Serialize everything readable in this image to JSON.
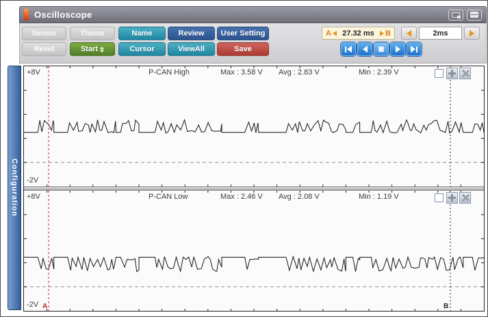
{
  "window": {
    "title": "Oscilloscope",
    "titlebar_icons": [
      "app-icon",
      "screen-capture-icon",
      "window-menu-icon"
    ]
  },
  "toolbar": {
    "buttons_row1": [
      {
        "label": "Sensor",
        "style": "gray"
      },
      {
        "label": "Theme",
        "style": "gray"
      },
      {
        "label": "Name",
        "style": "teal"
      },
      {
        "label": "Review",
        "style": "blue"
      },
      {
        "label": "User Setting",
        "style": "blue"
      }
    ],
    "buttons_row2": [
      {
        "label": "Reset",
        "style": "gray"
      },
      {
        "label": "Start",
        "style": "green",
        "spinner_icon": "up-down-spinner-icon"
      },
      {
        "label": "Cursor",
        "style": "teal"
      },
      {
        "label": "ViewAll",
        "style": "teal"
      },
      {
        "label": "Save",
        "style": "red"
      }
    ],
    "time_display": {
      "a_label": "A",
      "b_label": "B",
      "value": "27.32 ms"
    },
    "timebase": {
      "value": "2ms",
      "left_arrow": "left-triangle-icon",
      "right_arrow": "right-triangle-icon"
    },
    "playback_buttons": [
      "first",
      "previous",
      "stop",
      "next",
      "last"
    ]
  },
  "sidebar": {
    "label": "Configuration"
  },
  "colors": {
    "teal_button": "#2f9bb4",
    "blue_button": "#33629f",
    "green_button": "#5d8f30",
    "red_button": "#bd4a42",
    "playback_blue": "#2f82d6",
    "accent_orange": "#e8941e",
    "cursor_a": "#c22222",
    "cursor_b": "#222222",
    "sidebar_blue": "#4474b0",
    "time_display_bg": "#fbf5de",
    "waveform": "#151515"
  },
  "chart_data": {
    "type": "line",
    "title": "CAN bus oscilloscope traces (2 channels)",
    "x_axis": {
      "timebase": "2ms",
      "cursor_a_to_b_time": "27.32 ms",
      "ticks_per_width": 20
    },
    "y_axis": {
      "top_label": "+8V",
      "bottom_label": "-2V",
      "max_v": 8,
      "min_v": -2,
      "side_tick_every_v": 2,
      "zero_gridline_dashed": true
    },
    "cursors": {
      "a": {
        "label": "A",
        "x_frac": 0.0536,
        "color": "#c22222"
      },
      "b": {
        "label": "B",
        "x_frac": 0.927,
        "color": "#222222"
      }
    },
    "bursts_x_frac": [
      [
        0.03,
        0.065
      ],
      [
        0.095,
        0.2
      ],
      [
        0.21,
        0.25
      ],
      [
        0.285,
        0.43
      ],
      [
        0.48,
        0.51
      ],
      [
        0.57,
        0.7
      ],
      [
        0.715,
        0.73
      ],
      [
        0.755,
        0.955
      ],
      [
        0.975,
        1.0
      ]
    ],
    "channels": [
      {
        "name": "P-CAN High",
        "max_text": "Max : 3.58 V",
        "avg_text": "Avg : 2.83 V",
        "min_text": "Min : 2.39 V",
        "max_v": 3.58,
        "avg_v": 2.83,
        "min_v": 2.39,
        "baseline_v": 2.5,
        "active_v": 3.55,
        "seed": 42
      },
      {
        "name": "P-CAN Low",
        "max_text": "Max : 2.46 V",
        "avg_text": "Avg : 2.08 V",
        "min_text": "Min : 1.19 V",
        "max_v": 2.46,
        "avg_v": 2.08,
        "min_v": 1.19,
        "baseline_v": 2.46,
        "active_v": 1.25,
        "seed": 1337
      }
    ]
  }
}
